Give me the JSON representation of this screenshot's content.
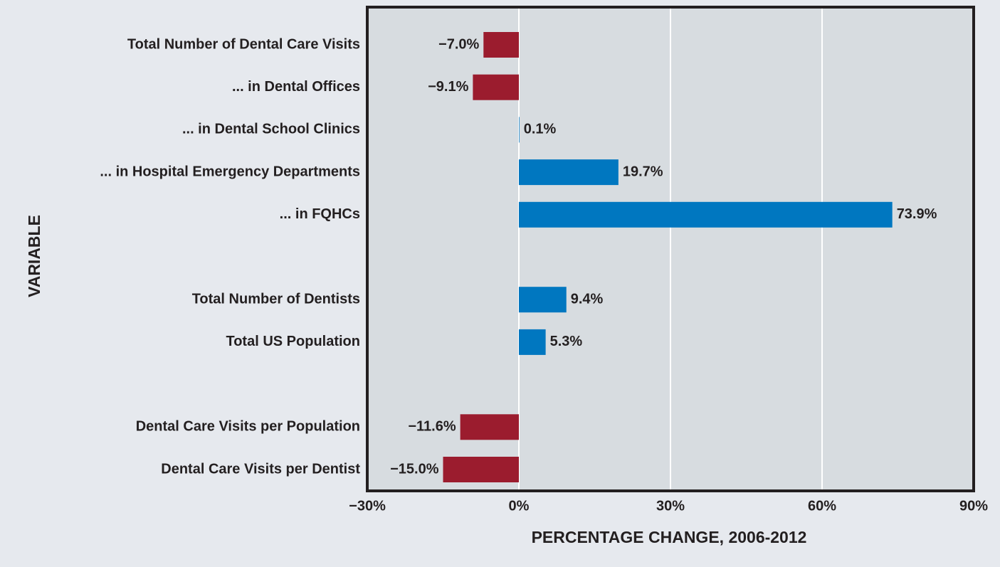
{
  "chart_data": {
    "type": "barh",
    "categories": [
      "Total Number of Dental Care Visits",
      "... in Dental Offices",
      "... in Dental School Clinics",
      "... in Hospital Emergency Departments",
      "... in FQHCs",
      null,
      "Total Number of Dentists",
      "Total US Population",
      null,
      "Dental Care Visits per Population",
      "Dental Care Visits per Dentist"
    ],
    "values": [
      -7.0,
      -9.1,
      0.1,
      19.7,
      73.9,
      null,
      9.4,
      5.3,
      null,
      -11.6,
      -15.0
    ],
    "value_labels": [
      "−7.0%",
      "−9.1%",
      "0.1%",
      "19.7%",
      "73.9%",
      null,
      "9.4%",
      "5.3%",
      null,
      "−11.6%",
      "−15.0%"
    ],
    "positive_color": "#0077c0",
    "negative_color": "#9b1c2e",
    "xlim": [
      -30,
      90
    ],
    "xticks": [
      {
        "value": -30,
        "label": "−30%"
      },
      {
        "value": 0,
        "label": "0%"
      },
      {
        "value": 30,
        "label": "30%"
      },
      {
        "value": 60,
        "label": "60%"
      },
      {
        "value": 90,
        "label": "90%"
      }
    ],
    "grid": true,
    "xlabel": "PERCENTAGE CHANGE, 2006-2012",
    "ylabel": "VARIABLE"
  }
}
